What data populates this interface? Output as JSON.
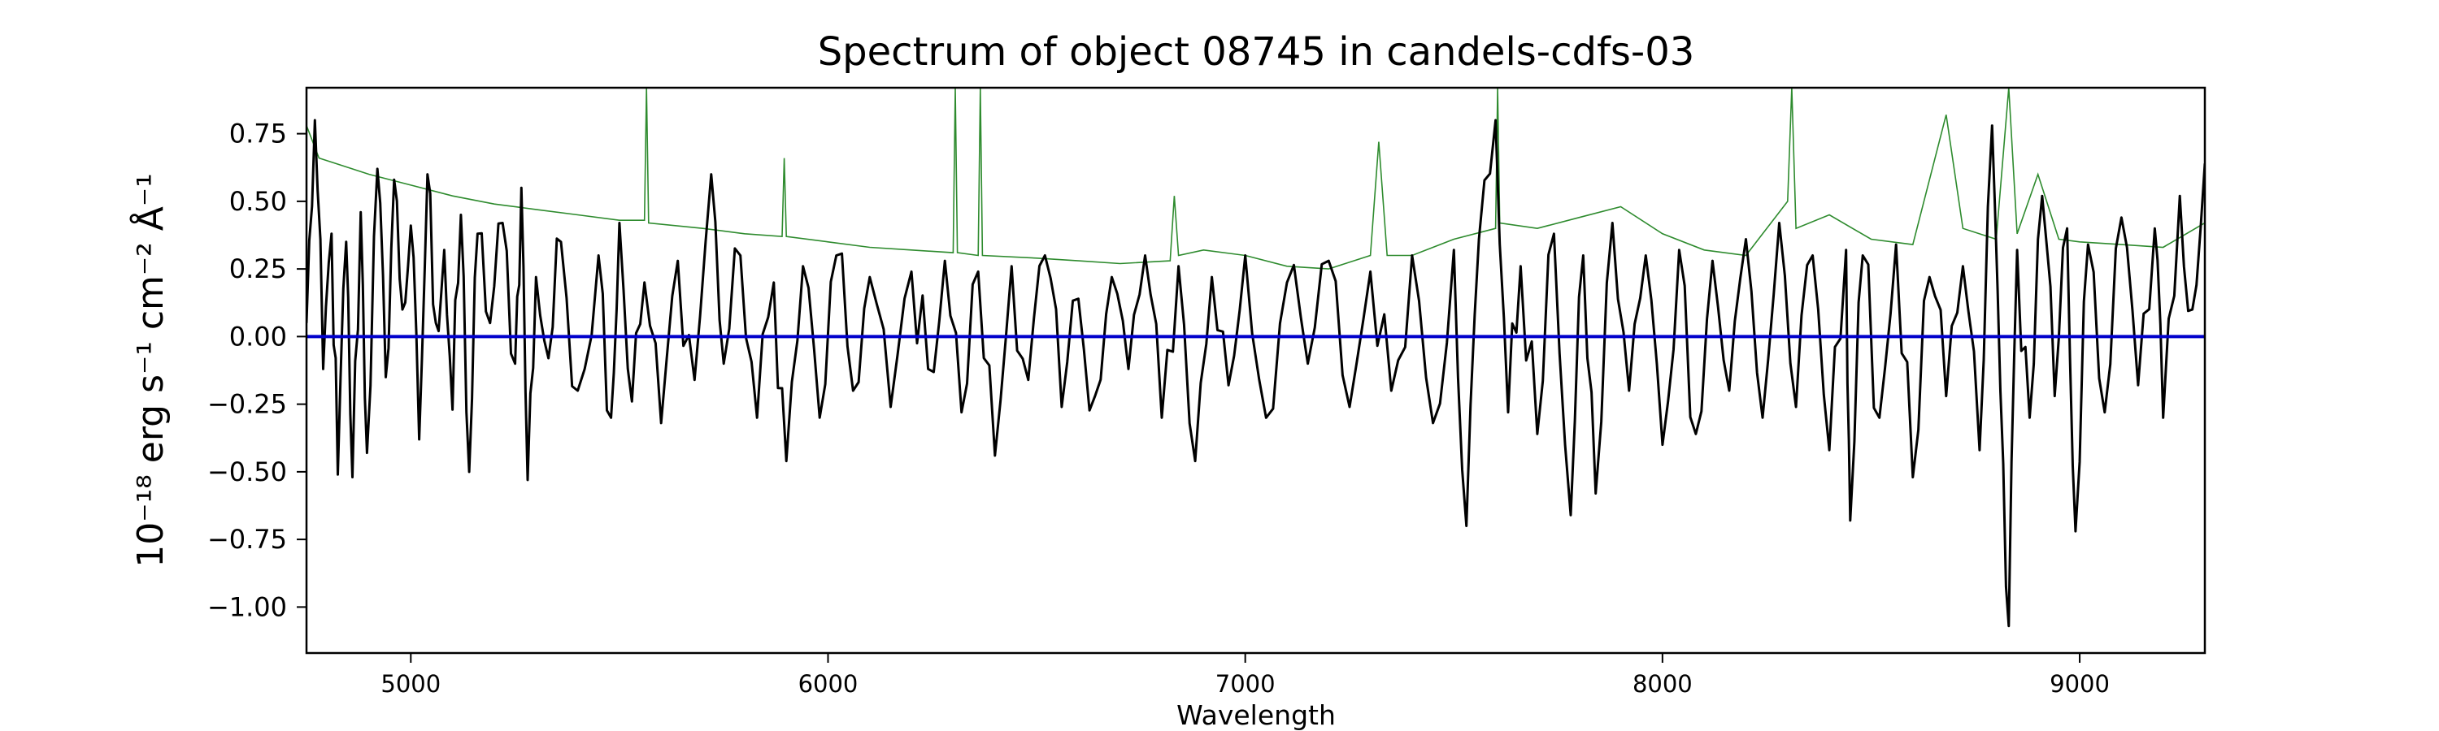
{
  "chart_data": {
    "type": "line",
    "title": "Spectrum of object 08745 in candels-cdfs-03",
    "xlabel": "Wavelength",
    "ylabel": "10⁻¹⁸ erg s⁻¹ cm⁻² Å⁻¹",
    "xlim": [
      4750,
      9300
    ],
    "ylim": [
      -1.17,
      0.92
    ],
    "x_ticks": [
      5000,
      6000,
      7000,
      8000,
      9000
    ],
    "x_tick_labels": [
      "5000",
      "6000",
      "7000",
      "8000",
      "9000"
    ],
    "y_ticks": [
      0.75,
      0.5,
      0.25,
      0.0,
      -0.25,
      -0.5,
      -0.75,
      -1.0
    ],
    "y_tick_labels": [
      "0.75",
      "0.50",
      "0.25",
      "0.00",
      "−0.25",
      "−0.50",
      "−0.75",
      "−1.00"
    ],
    "grid": false,
    "colors": {
      "flux": "#000000",
      "error": "#2e8b2e",
      "zero": "#0000cc"
    },
    "flux_key_points": [
      [
        4750,
        0.05
      ],
      [
        4770,
        0.8
      ],
      [
        4790,
        -0.12
      ],
      [
        4810,
        0.38
      ],
      [
        4825,
        -0.51
      ],
      [
        4845,
        0.35
      ],
      [
        4860,
        -0.52
      ],
      [
        4880,
        0.46
      ],
      [
        4895,
        -0.43
      ],
      [
        4920,
        0.62
      ],
      [
        4940,
        -0.15
      ],
      [
        4960,
        0.58
      ],
      [
        4980,
        0.1
      ],
      [
        5000,
        0.41
      ],
      [
        5020,
        -0.38
      ],
      [
        5040,
        0.6
      ],
      [
        5060,
        0.05
      ],
      [
        5080,
        0.32
      ],
      [
        5100,
        -0.27
      ],
      [
        5120,
        0.45
      ],
      [
        5140,
        -0.5
      ],
      [
        5160,
        0.38
      ],
      [
        5190,
        0.05
      ],
      [
        5220,
        0.42
      ],
      [
        5250,
        -0.1
      ],
      [
        5265,
        0.55
      ],
      [
        5280,
        -0.53
      ],
      [
        5300,
        0.22
      ],
      [
        5330,
        -0.08
      ],
      [
        5360,
        0.35
      ],
      [
        5400,
        -0.2
      ],
      [
        5450,
        0.3
      ],
      [
        5480,
        -0.3
      ],
      [
        5500,
        0.42
      ],
      [
        5530,
        -0.24
      ],
      [
        5560,
        0.2
      ],
      [
        5600,
        -0.32
      ],
      [
        5640,
        0.28
      ],
      [
        5680,
        -0.16
      ],
      [
        5720,
        0.6
      ],
      [
        5750,
        -0.1
      ],
      [
        5790,
        0.3
      ],
      [
        5830,
        -0.3
      ],
      [
        5870,
        0.2
      ],
      [
        5900,
        -0.46
      ],
      [
        5940,
        0.26
      ],
      [
        5980,
        -0.3
      ],
      [
        6020,
        0.3
      ],
      [
        6060,
        -0.2
      ],
      [
        6100,
        0.22
      ],
      [
        6150,
        -0.26
      ],
      [
        6200,
        0.24
      ],
      [
        6240,
        -0.12
      ],
      [
        6280,
        0.28
      ],
      [
        6320,
        -0.28
      ],
      [
        6360,
        0.24
      ],
      [
        6400,
        -0.44
      ],
      [
        6440,
        0.26
      ],
      [
        6480,
        -0.16
      ],
      [
        6520,
        0.3
      ],
      [
        6560,
        -0.26
      ],
      [
        6600,
        0.14
      ],
      [
        6640,
        -0.22
      ],
      [
        6680,
        0.22
      ],
      [
        6720,
        -0.12
      ],
      [
        6760,
        0.3
      ],
      [
        6800,
        -0.3
      ],
      [
        6840,
        0.26
      ],
      [
        6880,
        -0.46
      ],
      [
        6920,
        0.22
      ],
      [
        6960,
        -0.18
      ],
      [
        7000,
        0.3
      ],
      [
        7050,
        -0.3
      ],
      [
        7100,
        0.2
      ],
      [
        7150,
        -0.1
      ],
      [
        7200,
        0.28
      ],
      [
        7250,
        -0.26
      ],
      [
        7300,
        0.24
      ],
      [
        7350,
        -0.2
      ],
      [
        7400,
        0.3
      ],
      [
        7450,
        -0.32
      ],
      [
        7500,
        0.32
      ],
      [
        7530,
        -0.7
      ],
      [
        7560,
        0.36
      ],
      [
        7600,
        0.8
      ],
      [
        7630,
        -0.28
      ],
      [
        7660,
        0.26
      ],
      [
        7700,
        -0.36
      ],
      [
        7740,
        0.38
      ],
      [
        7780,
        -0.66
      ],
      [
        7810,
        0.3
      ],
      [
        7840,
        -0.58
      ],
      [
        7880,
        0.42
      ],
      [
        7920,
        -0.2
      ],
      [
        7960,
        0.3
      ],
      [
        8000,
        -0.4
      ],
      [
        8040,
        0.32
      ],
      [
        8080,
        -0.36
      ],
      [
        8120,
        0.28
      ],
      [
        8160,
        -0.2
      ],
      [
        8200,
        0.36
      ],
      [
        8240,
        -0.3
      ],
      [
        8280,
        0.42
      ],
      [
        8320,
        -0.26
      ],
      [
        8360,
        0.3
      ],
      [
        8400,
        -0.42
      ],
      [
        8440,
        0.32
      ],
      [
        8450,
        -0.68
      ],
      [
        8480,
        0.3
      ],
      [
        8520,
        -0.3
      ],
      [
        8560,
        0.34
      ],
      [
        8600,
        -0.52
      ],
      [
        8640,
        0.22
      ],
      [
        8680,
        -0.22
      ],
      [
        8720,
        0.26
      ],
      [
        8760,
        -0.42
      ],
      [
        8790,
        0.78
      ],
      [
        8810,
        -0.2
      ],
      [
        8830,
        -1.07
      ],
      [
        8850,
        0.32
      ],
      [
        8880,
        -0.3
      ],
      [
        8910,
        0.52
      ],
      [
        8940,
        -0.22
      ],
      [
        8970,
        0.4
      ],
      [
        8990,
        -0.72
      ],
      [
        9020,
        0.34
      ],
      [
        9060,
        -0.28
      ],
      [
        9100,
        0.44
      ],
      [
        9140,
        -0.18
      ],
      [
        9180,
        0.4
      ],
      [
        9200,
        -0.3
      ],
      [
        9240,
        0.52
      ],
      [
        9270,
        0.1
      ],
      [
        9300,
        0.64
      ]
    ],
    "error_key_points": [
      [
        4750,
        0.78
      ],
      [
        4780,
        0.66
      ],
      [
        4820,
        0.64
      ],
      [
        4900,
        0.6
      ],
      [
        5000,
        0.56
      ],
      [
        5100,
        0.52
      ],
      [
        5200,
        0.49
      ],
      [
        5300,
        0.47
      ],
      [
        5400,
        0.45
      ],
      [
        5500,
        0.43
      ],
      [
        5560,
        0.43
      ],
      [
        5565,
        0.92
      ],
      [
        5570,
        0.42
      ],
      [
        5700,
        0.4
      ],
      [
        5800,
        0.38
      ],
      [
        5890,
        0.37
      ],
      [
        5895,
        0.66
      ],
      [
        5900,
        0.37
      ],
      [
        6000,
        0.35
      ],
      [
        6100,
        0.33
      ],
      [
        6200,
        0.32
      ],
      [
        6300,
        0.31
      ],
      [
        6305,
        0.92
      ],
      [
        6310,
        0.31
      ],
      [
        6360,
        0.3
      ],
      [
        6365,
        0.92
      ],
      [
        6370,
        0.3
      ],
      [
        6500,
        0.29
      ],
      [
        6600,
        0.28
      ],
      [
        6700,
        0.27
      ],
      [
        6820,
        0.28
      ],
      [
        6830,
        0.52
      ],
      [
        6840,
        0.3
      ],
      [
        6900,
        0.32
      ],
      [
        7000,
        0.3
      ],
      [
        7100,
        0.26
      ],
      [
        7200,
        0.25
      ],
      [
        7300,
        0.3
      ],
      [
        7320,
        0.72
      ],
      [
        7340,
        0.3
      ],
      [
        7400,
        0.3
      ],
      [
        7500,
        0.36
      ],
      [
        7600,
        0.4
      ],
      [
        7605,
        0.92
      ],
      [
        7610,
        0.42
      ],
      [
        7700,
        0.4
      ],
      [
        7800,
        0.44
      ],
      [
        7900,
        0.48
      ],
      [
        8000,
        0.38
      ],
      [
        8100,
        0.32
      ],
      [
        8200,
        0.3
      ],
      [
        8300,
        0.5
      ],
      [
        8310,
        0.92
      ],
      [
        8320,
        0.4
      ],
      [
        8400,
        0.45
      ],
      [
        8500,
        0.36
      ],
      [
        8600,
        0.34
      ],
      [
        8680,
        0.82
      ],
      [
        8720,
        0.4
      ],
      [
        8800,
        0.36
      ],
      [
        8830,
        0.92
      ],
      [
        8850,
        0.38
      ],
      [
        8900,
        0.6
      ],
      [
        8950,
        0.36
      ],
      [
        9000,
        0.35
      ],
      [
        9100,
        0.34
      ],
      [
        9200,
        0.33
      ],
      [
        9300,
        0.42
      ]
    ],
    "zero_line": 0.0
  }
}
